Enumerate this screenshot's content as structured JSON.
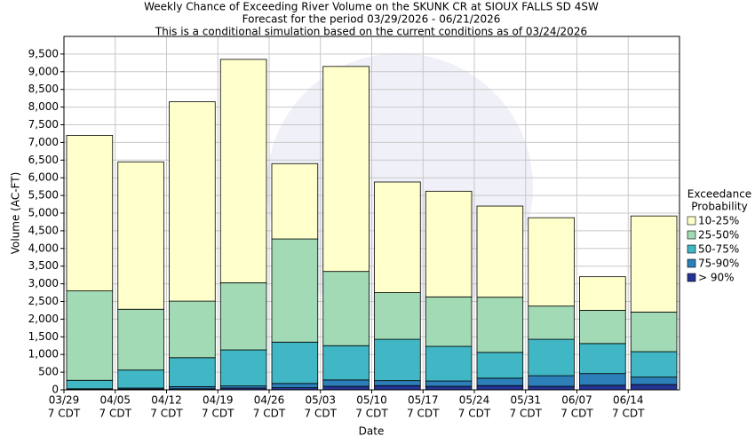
{
  "chart_data": {
    "type": "stacked-bar",
    "title_lines": [
      "Weekly Chance of Exceeding River Volume on the SKUNK CR at SIOUX FALLS SD 4SW",
      "Forecast for the period 03/29/2026 - 06/21/2026",
      "This is a conditional simulation based on the current conditions as of 03/24/2026"
    ],
    "x_label": "Date",
    "y_label": "Volume (AC-FT)",
    "categories": [
      "03/29",
      "04/05",
      "04/12",
      "04/19",
      "04/26",
      "05/03",
      "05/10",
      "05/17",
      "05/24",
      "05/31",
      "06/07",
      "06/14"
    ],
    "category_sublabel": "7 CDT",
    "legend_title": [
      "Exceedance",
      "Probability"
    ],
    "series": [
      {
        "name": "> 90%",
        "color": "#253494",
        "values": [
          10,
          20,
          30,
          50,
          60,
          100,
          120,
          100,
          120,
          100,
          130,
          150
        ]
      },
      {
        "name": "75-90%",
        "color": "#2c7fb8",
        "values": [
          20,
          30,
          60,
          60,
          120,
          180,
          140,
          150,
          210,
          300,
          330,
          210
        ]
      },
      {
        "name": "50-75%",
        "color": "#41b6c4",
        "values": [
          240,
          510,
          820,
          1020,
          1170,
          970,
          1170,
          980,
          730,
          1030,
          850,
          720
        ]
      },
      {
        "name": "25-50%",
        "color": "#a1dab4",
        "values": [
          2530,
          1720,
          1600,
          1900,
          2920,
          2100,
          1320,
          1400,
          1560,
          940,
          940,
          1120
        ]
      },
      {
        "name": "10-25%",
        "color": "#ffffcc",
        "values": [
          4400,
          4170,
          5640,
          6320,
          2130,
          5800,
          3130,
          2990,
          2580,
          2500,
          950,
          2720
        ]
      }
    ],
    "ylim": [
      0,
      10000
    ],
    "yticks": [
      0,
      500,
      {
        "value": 1000,
        "label": "1,000"
      },
      {
        "value": 1500,
        "label": "1,500"
      },
      {
        "value": 2000,
        "label": "2,000"
      },
      {
        "value": 2500,
        "label": "2,500"
      },
      {
        "value": 3000,
        "label": "3,000"
      },
      {
        "value": 3500,
        "label": "3,500"
      },
      {
        "value": 4000,
        "label": "4,000"
      },
      {
        "value": 4500,
        "label": "4,500"
      },
      {
        "value": 5000,
        "label": "5,000"
      },
      {
        "value": 5500,
        "label": "5,500"
      },
      {
        "value": 6000,
        "label": "6,000"
      },
      {
        "value": 6500,
        "label": "6,500"
      },
      {
        "value": 7000,
        "label": "7,000"
      },
      {
        "value": 7500,
        "label": "7,500"
      },
      {
        "value": 8000,
        "label": "8,000"
      },
      {
        "value": 8500,
        "label": "8,500"
      },
      {
        "value": 9000,
        "label": "9,000"
      },
      {
        "value": 9500,
        "label": "9,500"
      }
    ],
    "grid": true
  }
}
